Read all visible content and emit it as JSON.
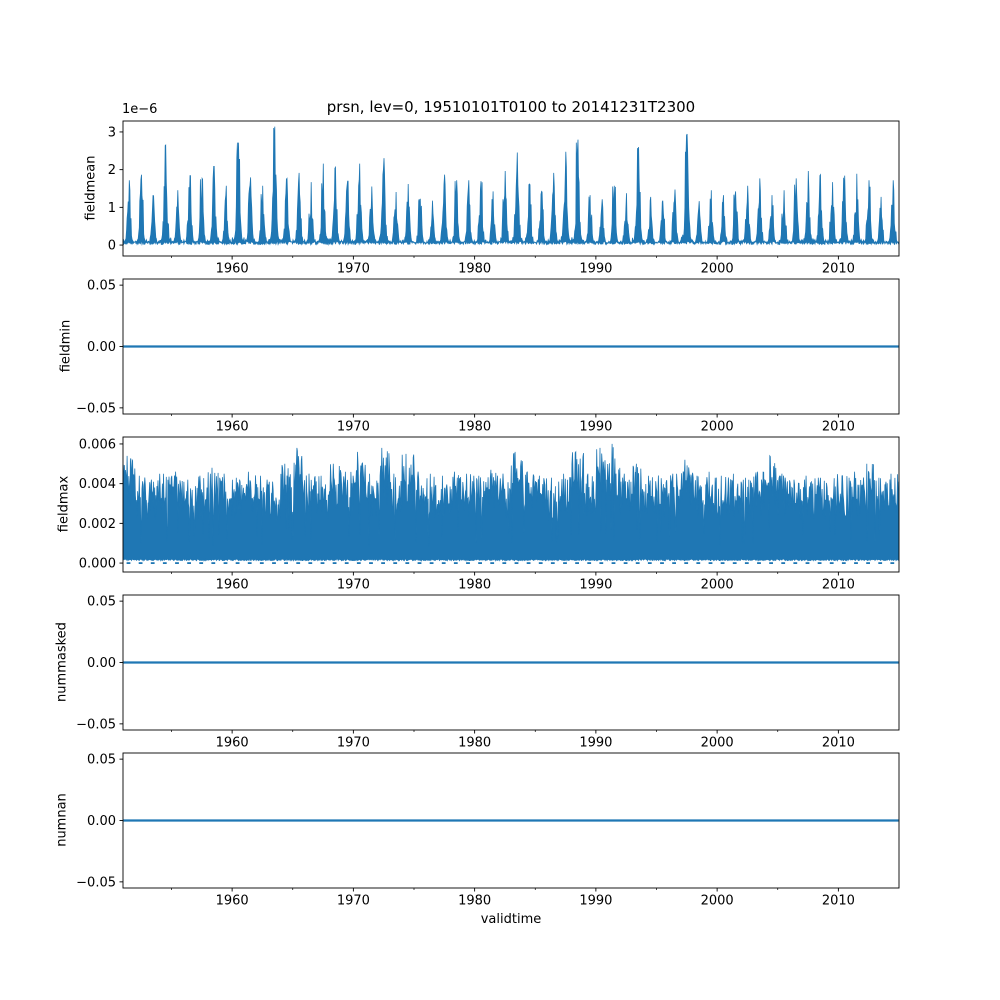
{
  "figure": {
    "title": "prsn, lev=0, 19510101T0100 to 20141231T2300",
    "xlabel": "validtime",
    "line_color": "#1f77b4",
    "background": "#ffffff",
    "text_color": "#000000"
  },
  "x_axis": {
    "label": "validtime",
    "range": [
      1951,
      2015
    ],
    "ticks": [
      1960,
      1970,
      1980,
      1990,
      2000,
      2010
    ],
    "tick_labels": [
      "1960",
      "1970",
      "1980",
      "1990",
      "2000",
      "2010"
    ],
    "minor_ticks": [
      1955,
      1965,
      1975,
      1985,
      1995,
      2005
    ]
  },
  "chart_data": [
    {
      "type": "line",
      "name": "fieldmean",
      "title": "prsn, lev=0, 19510101T0100 to 20141231T2300",
      "ylabel": "fieldmean",
      "offset_text": "1e−6",
      "ylim": [
        -2.9e-07,
        3.29e-06
      ],
      "yticks": [
        0,
        1e-06,
        2e-06,
        3e-06
      ],
      "ytick_labels": [
        "0",
        "1",
        "2",
        "3"
      ],
      "pattern": "seasonal",
      "note": "hourly snowfall-rate mean, annual winter peaks; values below are yearly peak amplitudes in 1e-6 units, years 1951-2014",
      "annual_peaks_1e6": [
        1.75,
        1.9,
        1.35,
        2.7,
        1.5,
        1.9,
        1.8,
        2.15,
        1.6,
        2.8,
        1.85,
        1.6,
        3.2,
        1.8,
        1.95,
        1.7,
        2.2,
        2.1,
        1.75,
        2.2,
        1.6,
        2.35,
        1.45,
        1.65,
        1.25,
        1.2,
        1.9,
        1.75,
        1.75,
        1.75,
        1.45,
        2.0,
        2.5,
        1.65,
        1.45,
        1.95,
        2.55,
        2.85,
        1.35,
        1.25,
        1.6,
        1.4,
        2.65,
        1.3,
        1.2,
        1.5,
        3.0,
        1.2,
        1.5,
        1.35,
        1.45,
        1.6,
        1.8,
        1.35,
        1.5,
        1.8,
        2.0,
        1.9,
        1.7,
        1.9,
        1.95,
        1.75,
        1.3,
        1.75
      ]
    },
    {
      "type": "line",
      "name": "fieldmin",
      "ylabel": "fieldmin",
      "ylim": [
        -0.055,
        0.055
      ],
      "yticks": [
        -0.05,
        0.0,
        0.05
      ],
      "ytick_labels": [
        "−0.05",
        "0.00",
        "0.05"
      ],
      "pattern": "constant",
      "value": 0.0
    },
    {
      "type": "line",
      "name": "fieldmax",
      "ylabel": "fieldmax",
      "ylim": [
        -0.00045,
        0.00635
      ],
      "yticks": [
        0.0,
        0.002,
        0.004,
        0.006
      ],
      "ytick_labels": [
        "0.000",
        "0.002",
        "0.004",
        "0.006"
      ],
      "pattern": "noisy-envelope",
      "note": "dense noisy series between ~0 and yearly maxima; values below are yearly max amplitudes, years 1951-2014; dips touch 0 once a year",
      "annual_max": [
        0.0054,
        0.0044,
        0.0042,
        0.0045,
        0.0046,
        0.0042,
        0.0044,
        0.0048,
        0.0045,
        0.0043,
        0.0046,
        0.0044,
        0.0041,
        0.005,
        0.0058,
        0.0045,
        0.0044,
        0.005,
        0.0046,
        0.0056,
        0.0045,
        0.0058,
        0.0045,
        0.0055,
        0.0046,
        0.0045,
        0.0044,
        0.0046,
        0.0045,
        0.0044,
        0.0047,
        0.0045,
        0.0056,
        0.0046,
        0.0044,
        0.0043,
        0.0045,
        0.0056,
        0.0045,
        0.0058,
        0.006,
        0.0045,
        0.005,
        0.0044,
        0.0046,
        0.0045,
        0.0052,
        0.0044,
        0.0046,
        0.0044,
        0.0045,
        0.0043,
        0.0046,
        0.0054,
        0.0045,
        0.0042,
        0.0044,
        0.0043,
        0.0045,
        0.0044,
        0.0046,
        0.005,
        0.0043,
        0.0045
      ]
    },
    {
      "type": "line",
      "name": "nummasked",
      "ylabel": "nummasked",
      "ylim": [
        -0.055,
        0.055
      ],
      "yticks": [
        -0.05,
        0.0,
        0.05
      ],
      "ytick_labels": [
        "−0.05",
        "0.00",
        "0.05"
      ],
      "pattern": "constant",
      "value": 0.0
    },
    {
      "type": "line",
      "name": "numnan",
      "ylabel": "numnan",
      "ylim": [
        -0.055,
        0.055
      ],
      "yticks": [
        -0.05,
        0.0,
        0.05
      ],
      "ytick_labels": [
        "−0.05",
        "0.00",
        "0.05"
      ],
      "pattern": "constant",
      "value": 0.0
    }
  ]
}
